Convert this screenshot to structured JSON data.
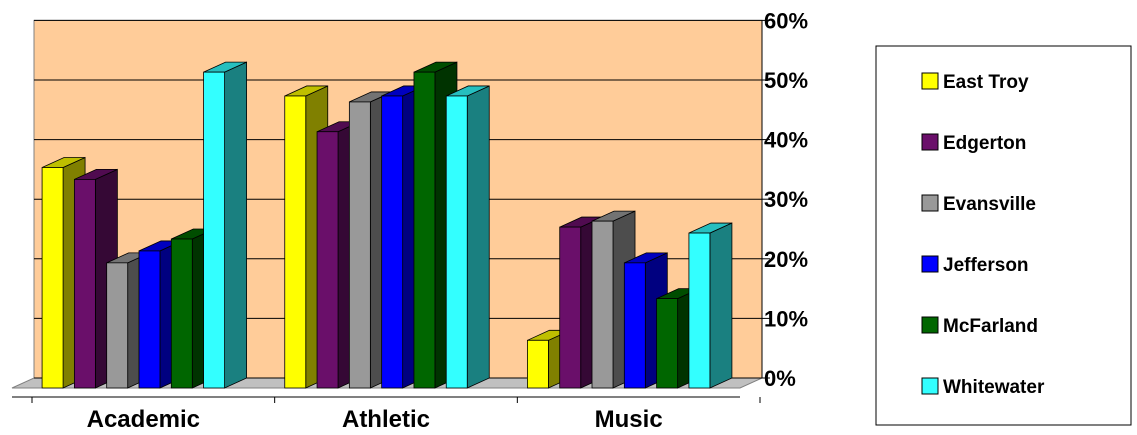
{
  "chart_data": {
    "type": "bar",
    "style": "3d-clustered-column",
    "categories": [
      "Academic",
      "Athletic",
      "Music"
    ],
    "series": [
      {
        "name": "East Troy",
        "color": "#FFFF00",
        "values": [
          37,
          49,
          8
        ]
      },
      {
        "name": "Edgerton",
        "color": "#6A0F6A",
        "values": [
          35,
          43,
          27
        ]
      },
      {
        "name": "Evansville",
        "color": "#999999",
        "values": [
          21,
          48,
          28
        ]
      },
      {
        "name": "Jefferson",
        "color": "#0000FF",
        "values": [
          23,
          49,
          21
        ]
      },
      {
        "name": "McFarland",
        "color": "#006600",
        "values": [
          25,
          53,
          15
        ]
      },
      {
        "name": "Whitewater",
        "color": "#33FFFF",
        "values": [
          53,
          49,
          26
        ]
      }
    ],
    "y_ticks": [
      "0%",
      "10%",
      "20%",
      "30%",
      "40%",
      "50%",
      "60%"
    ],
    "ylim": [
      0,
      60
    ],
    "y_unit": "%",
    "grid": true,
    "y_axis_side": "right",
    "legend_placement": "right",
    "wall_color": "#FFCC99"
  }
}
